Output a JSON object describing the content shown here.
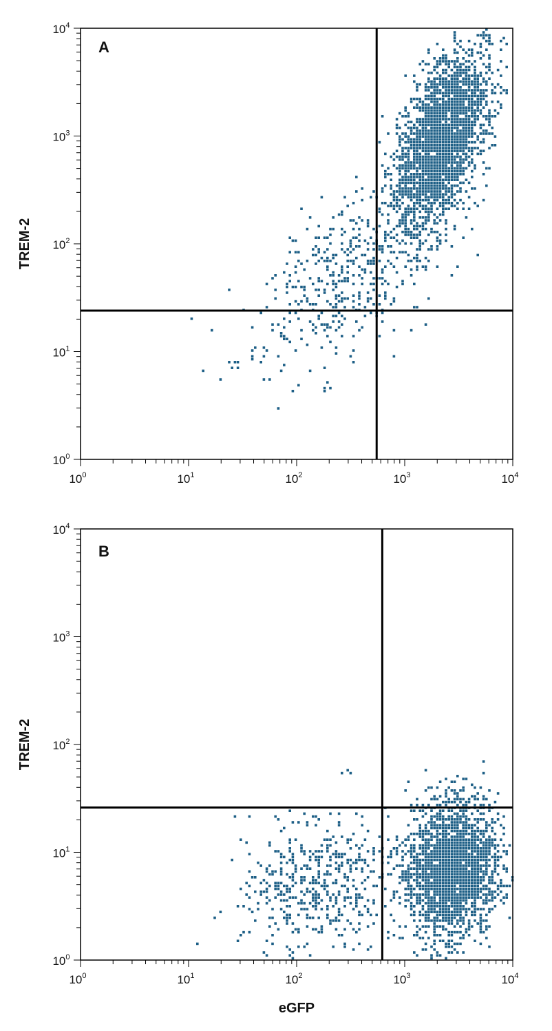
{
  "colors": {
    "dot": "#1d5f86",
    "line": "#000000",
    "frame": "#000000"
  },
  "chart_data": [
    {
      "type": "scatter",
      "panel_label": "A",
      "xscale": "log",
      "yscale": "log",
      "xlim": [
        1,
        10000
      ],
      "ylim": [
        1,
        10000
      ],
      "xlabel": "",
      "ylabel": "TREM-2",
      "x_tick_labels": [
        [
          "10",
          "0"
        ],
        [
          "10",
          "1"
        ],
        [
          "10",
          "2"
        ],
        [
          "10",
          "3"
        ],
        [
          "10",
          "4"
        ]
      ],
      "y_tick_labels": [
        [
          "10",
          "0"
        ],
        [
          "10",
          "1"
        ],
        [
          "10",
          "2"
        ],
        [
          "10",
          "3"
        ],
        [
          "10",
          "4"
        ]
      ],
      "quadrant_gates": {
        "x": 550,
        "y": 24
      },
      "populations": [
        {
          "cx": 2200,
          "cy": 900,
          "sx": 0.22,
          "sy": 0.42,
          "rho": 0.55,
          "n": 2600
        },
        {
          "cx": 300,
          "cy": 60,
          "sx": 0.42,
          "sy": 0.38,
          "rho": 0.5,
          "n": 380
        },
        {
          "cx": 120,
          "cy": 12,
          "sx": 0.35,
          "sy": 0.3,
          "rho": 0.3,
          "n": 60
        }
      ]
    },
    {
      "type": "scatter",
      "panel_label": "B",
      "xscale": "log",
      "yscale": "log",
      "xlim": [
        1,
        10000
      ],
      "ylim": [
        1,
        10000
      ],
      "xlabel": "eGFP",
      "ylabel": "TREM-2",
      "x_tick_labels": [
        [
          "10",
          "0"
        ],
        [
          "10",
          "1"
        ],
        [
          "10",
          "2"
        ],
        [
          "10",
          "3"
        ],
        [
          "10",
          "4"
        ]
      ],
      "y_tick_labels": [
        [
          "10",
          "0"
        ],
        [
          "10",
          "1"
        ],
        [
          "10",
          "2"
        ],
        [
          "10",
          "3"
        ],
        [
          "10",
          "4"
        ]
      ],
      "quadrant_gates": {
        "x": 620,
        "y": 26
      },
      "populations": [
        {
          "cx": 2800,
          "cy": 7,
          "sx": 0.2,
          "sy": 0.3,
          "rho": 0.1,
          "n": 2400
        },
        {
          "cx": 160,
          "cy": 5,
          "sx": 0.35,
          "sy": 0.3,
          "rho": 0.1,
          "n": 520
        },
        {
          "cx": 3000,
          "cy": 30,
          "sx": 0.2,
          "sy": 0.12,
          "rho": 0.0,
          "n": 60
        }
      ]
    }
  ]
}
